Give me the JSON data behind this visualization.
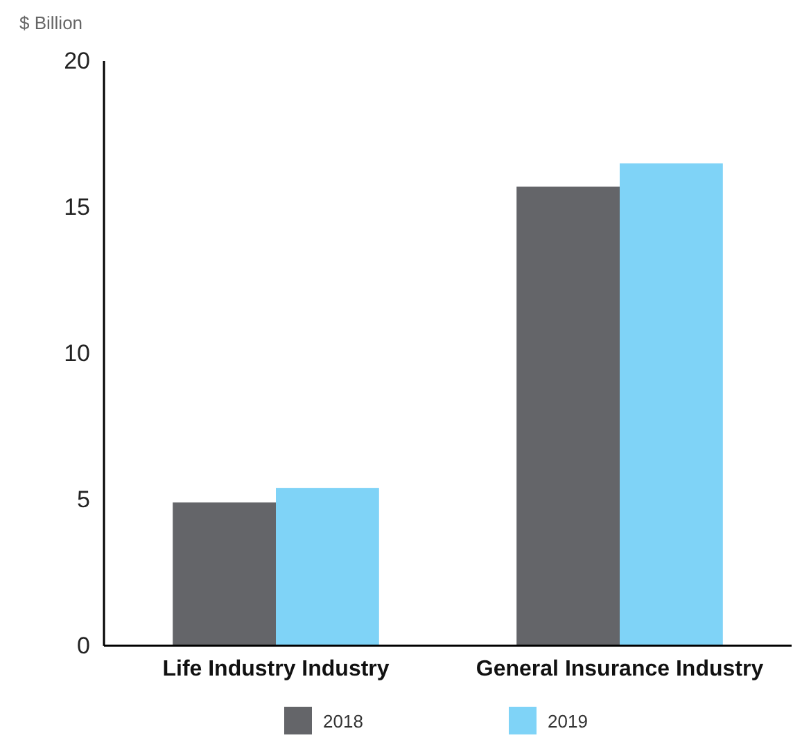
{
  "chart_data": {
    "type": "bar",
    "ylabel": "$ Billion",
    "categories": [
      "Life Industry Industry",
      "General Insurance Industry"
    ],
    "series": [
      {
        "name": "2018",
        "color": "#646569",
        "values": [
          4.9,
          15.7
        ]
      },
      {
        "name": "2019",
        "color": "#7fd3f7",
        "values": [
          5.4,
          16.5
        ]
      }
    ],
    "ylim": [
      0,
      20
    ],
    "yticks": [
      0,
      5,
      10,
      15,
      20
    ],
    "grid": false,
    "legend": "bottom"
  }
}
